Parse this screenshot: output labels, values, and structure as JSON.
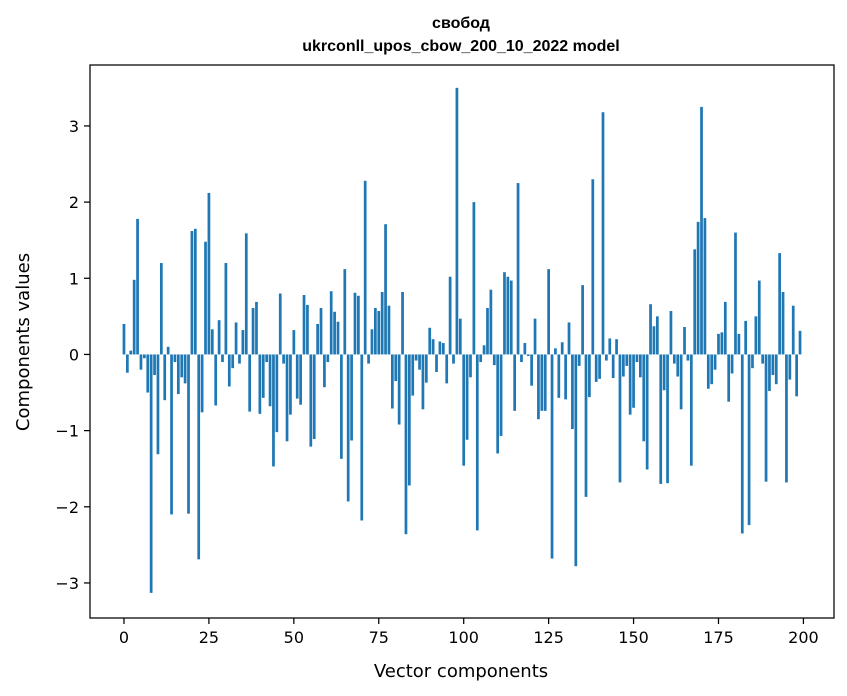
{
  "chart_data": {
    "type": "bar",
    "title": "свобод",
    "subtitle": "ukrconll_upos_cbow_200_10_2022 model",
    "xlabel": "Vector components",
    "ylabel": "Components values",
    "xlim": [
      -10,
      209
    ],
    "ylim": [
      -3.46,
      3.8
    ],
    "xticks": [
      0,
      25,
      50,
      75,
      100,
      125,
      150,
      175,
      200
    ],
    "yticks": [
      -3,
      -2,
      -1,
      0,
      1,
      2,
      3
    ],
    "xtick_labels": [
      "0",
      "25",
      "50",
      "75",
      "100",
      "125",
      "150",
      "175",
      "200"
    ],
    "ytick_labels": [
      "−3",
      "−2",
      "−1",
      "0",
      "1",
      "2",
      "3"
    ],
    "grid": false,
    "bar_color": "#1f77b4",
    "values": [
      0.4,
      -0.24,
      0.05,
      0.98,
      1.78,
      -0.2,
      -0.05,
      -0.5,
      -3.13,
      -0.27,
      -1.31,
      1.2,
      -0.6,
      0.1,
      -2.1,
      -0.1,
      -0.52,
      -0.3,
      -0.38,
      -2.09,
      1.62,
      1.65,
      -2.69,
      -0.76,
      1.48,
      2.12,
      0.33,
      -0.67,
      0.45,
      -0.1,
      1.2,
      -0.42,
      -0.18,
      0.42,
      -0.12,
      0.32,
      1.59,
      -0.75,
      0.61,
      0.69,
      -0.78,
      -0.57,
      -0.1,
      -0.68,
      -1.47,
      -1.02,
      0.8,
      -0.12,
      -1.14,
      -0.79,
      0.32,
      -0.58,
      -0.66,
      0.78,
      0.65,
      -1.21,
      -1.11,
      0.4,
      0.61,
      -0.43,
      -0.1,
      0.83,
      0.56,
      0.43,
      -1.37,
      1.12,
      -1.93,
      -1.13,
      0.81,
      0.77,
      -2.18,
      2.28,
      -0.12,
      0.33,
      0.61,
      0.57,
      0.82,
      1.71,
      0.64,
      -0.71,
      -0.35,
      -0.92,
      0.82,
      -2.36,
      -1.72,
      -0.54,
      -0.08,
      -0.2,
      -0.72,
      -0.37,
      0.35,
      0.2,
      -0.23,
      0.17,
      0.15,
      -0.38,
      1.02,
      -0.12,
      3.5,
      0.47,
      -1.46,
      -1.12,
      -0.3,
      2.0,
      -2.31,
      -0.1,
      0.12,
      0.61,
      0.85,
      -0.14,
      -1.3,
      -1.07,
      1.08,
      1.02,
      0.97,
      -0.74,
      2.25,
      -0.1,
      0.15,
      -0.02,
      -0.41,
      0.47,
      -0.85,
      -0.74,
      -0.74,
      1.12,
      -2.68,
      0.08,
      -0.57,
      0.16,
      -0.59,
      0.42,
      -0.98,
      -2.78,
      -0.15,
      0.91,
      -1.87,
      -0.56,
      2.3,
      -0.36,
      -0.32,
      3.18,
      -0.08,
      0.21,
      -0.31,
      0.2,
      -1.68,
      -0.29,
      -0.15,
      -0.79,
      -0.7,
      -0.1,
      -0.3,
      -1.14,
      -1.51,
      0.66,
      0.37,
      0.5,
      -1.7,
      -0.47,
      -1.69,
      0.57,
      -0.12,
      -0.29,
      -0.72,
      0.36,
      -0.08,
      -1.46,
      1.38,
      1.74,
      3.25,
      1.79,
      -0.45,
      -0.39,
      -0.2,
      0.27,
      0.29,
      0.69,
      -0.62,
      -0.25,
      1.6,
      0.27,
      -2.35,
      0.44,
      -2.24,
      -0.18,
      0.5,
      0.97,
      -0.12,
      -1.67,
      -0.48,
      -0.27,
      -0.39,
      1.33,
      0.82,
      -1.68,
      -0.33,
      0.64,
      -0.55,
      0.31
    ]
  }
}
